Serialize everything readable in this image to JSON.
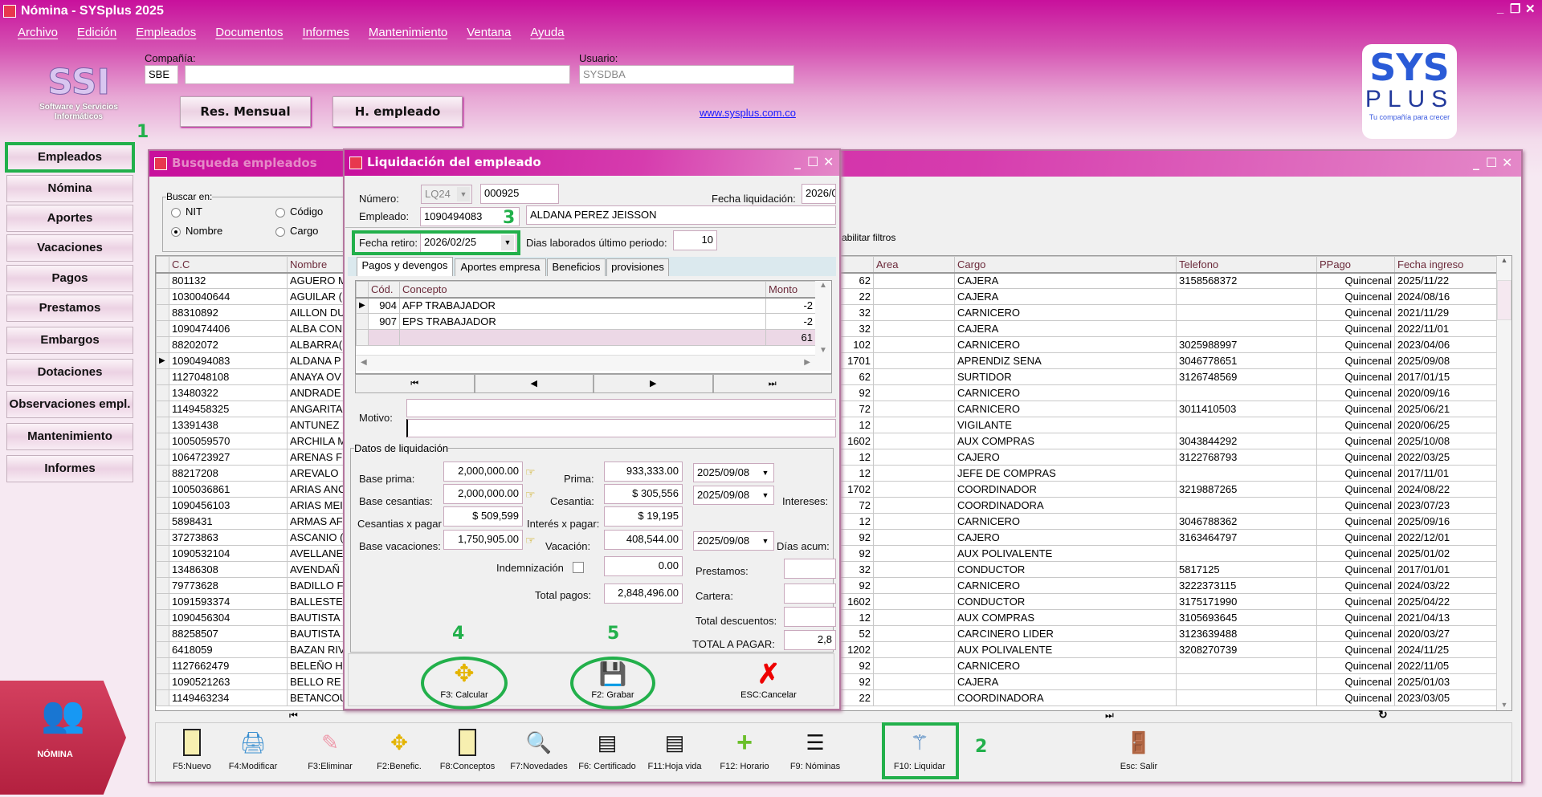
{
  "app": {
    "title": "Nómina - SYSplus 2025"
  },
  "menu": [
    "Archivo",
    "Edición",
    "Empleados",
    "Documentos",
    "Informes",
    "Mantenimiento",
    "Ventana",
    "Ayuda"
  ],
  "header": {
    "company_label": "Compañía:",
    "company_code": "SBE",
    "company_name": "",
    "user_label": "Usuario:",
    "user_value": "SYSDBA",
    "res_mensual": "Res. Mensual",
    "h_empleado": "H. empleado",
    "website": "www.sysplus.com.co",
    "ssi_logo_text": "SSI",
    "ssi_caption": "Software y Servicios Informáticos",
    "sysplus_logo": {
      "line1": "SYS",
      "line2": "PLUS",
      "tagline": "Tu compañía para crecer"
    }
  },
  "sidebar": {
    "items": [
      "Empleados",
      "Nómina",
      "Aportes",
      "Vacaciones",
      "Pagos",
      "Prestamos",
      "Embargos",
      "Dotaciones",
      "Observaciones empl.",
      "Mantenimiento",
      "Informes"
    ],
    "badge_label": "NÓMINA"
  },
  "annotations": {
    "n1": "1",
    "n2": "2",
    "n3": "3",
    "n4": "4",
    "n5": "5",
    "color": "#22b04b"
  },
  "search_window": {
    "title": "Busqueda empleados",
    "search_group": "Buscar en:",
    "radios": [
      {
        "label": "NIT",
        "checked": false
      },
      {
        "label": "Código",
        "checked": false
      },
      {
        "label": "Nombre",
        "checked": true
      },
      {
        "label": "Cargo",
        "checked": false
      }
    ],
    "filters_text": "abilitar filtros",
    "columns": [
      "C.C",
      "Nombre",
      "",
      "Area",
      "Cargo",
      "Telefono",
      "PPago",
      "Fecha ingreso"
    ],
    "selected_index": 5,
    "rows": [
      [
        "801132",
        "AGUERO M",
        "62",
        "",
        "CAJERA",
        "3158568372",
        "Quincenal",
        "2025/11/22"
      ],
      [
        "1030040644",
        "AGUILAR (",
        "22",
        "",
        "CAJERA",
        "",
        "Quincenal",
        "2024/08/16"
      ],
      [
        "88310892",
        "AILLON DU",
        "32",
        "",
        "CARNICERO",
        "",
        "Quincenal",
        "2021/11/29"
      ],
      [
        "1090474406",
        "ALBA CON",
        "32",
        "",
        "CAJERA",
        "",
        "Quincenal",
        "2022/11/01"
      ],
      [
        "88202072",
        "ALBARRA(",
        "102",
        "",
        "CARNICERO",
        "3025988997",
        "Quincenal",
        "2023/04/06"
      ],
      [
        "1090494083",
        "ALDANA P",
        "1701",
        "",
        "APRENDIZ SENA",
        "3046778651",
        "Quincenal",
        "2025/09/08"
      ],
      [
        "1127048108",
        "ANAYA OV",
        "62",
        "",
        "SURTIDOR",
        "3126748569",
        "Quincenal",
        "2017/01/15"
      ],
      [
        "13480322",
        "ANDRADE",
        "92",
        "",
        "CARNICERO",
        "",
        "Quincenal",
        "2020/09/16"
      ],
      [
        "1149458325",
        "ANGARITA",
        "72",
        "",
        "CARNICERO",
        "3011410503",
        "Quincenal",
        "2025/06/21"
      ],
      [
        "13391438",
        "ANTUNEZ",
        "12",
        "",
        "VIGILANTE",
        "",
        "Quincenal",
        "2020/06/25"
      ],
      [
        "1005059570",
        "ARCHILA M",
        "1602",
        "",
        "AUX COMPRAS",
        "3043844292",
        "Quincenal",
        "2025/10/08"
      ],
      [
        "1064723927",
        "ARENAS F",
        "12",
        "",
        "CAJERO",
        "3122768793",
        "Quincenal",
        "2022/03/25"
      ],
      [
        "88217208",
        "AREVALO",
        "12",
        "",
        "JEFE DE COMPRAS",
        "",
        "Quincenal",
        "2017/11/01"
      ],
      [
        "1005036861",
        "ARIAS ANC",
        "1702",
        "",
        "COORDINADOR",
        "3219887265",
        "Quincenal",
        "2024/08/22"
      ],
      [
        "1090456103",
        "ARIAS MEI",
        "72",
        "",
        "COORDINADORA",
        "",
        "Quincenal",
        "2023/07/23"
      ],
      [
        "5898431",
        "ARMAS AF",
        "12",
        "",
        "CARNICERO",
        "3046788362",
        "Quincenal",
        "2025/09/16"
      ],
      [
        "37273863",
        "ASCANIO (",
        "92",
        "",
        "CAJERO",
        "3163464797",
        "Quincenal",
        "2022/12/01"
      ],
      [
        "1090532104",
        "AVELLANE",
        "92",
        "",
        "AUX POLIVALENTE",
        "",
        "Quincenal",
        "2025/01/02"
      ],
      [
        "13486308",
        "AVENDAÑ",
        "32",
        "",
        "CONDUCTOR",
        "5817125",
        "Quincenal",
        "2017/01/01"
      ],
      [
        "79773628",
        "BADILLO F",
        "92",
        "",
        "CARNICERO",
        "3222373115",
        "Quincenal",
        "2024/03/22"
      ],
      [
        "1091593374",
        "BALLESTE",
        "1602",
        "",
        "CONDUCTOR",
        "3175171990",
        "Quincenal",
        "2025/04/22"
      ],
      [
        "1090456304",
        "BAUTISTA",
        "12",
        "",
        "AUX COMPRAS",
        "3105693645",
        "Quincenal",
        "2021/04/13"
      ],
      [
        "88258507",
        "BAUTISTA",
        "52",
        "",
        "CARCINERO LIDER",
        "3123639488",
        "Quincenal",
        "2020/03/27"
      ],
      [
        "6418059",
        "BAZAN RIV",
        "1202",
        "",
        "AUX POLIVALENTE",
        "3208270739",
        "Quincenal",
        "2024/11/25"
      ],
      [
        "1127662479",
        "BELEÑO H",
        "92",
        "",
        "CARNICERO",
        "",
        "Quincenal",
        "2022/11/05"
      ],
      [
        "1090521263",
        "BELLO RE",
        "92",
        "",
        "CAJERA",
        "",
        "Quincenal",
        "2025/01/03"
      ],
      [
        "1149463234",
        "BETANCOU",
        "22",
        "",
        "COORDINADORA",
        "",
        "Quincenal",
        "2023/03/05"
      ]
    ],
    "toolbar": [
      {
        "label": "F5:Nuevo",
        "icon": "new-icon"
      },
      {
        "label": "F4:Modificar",
        "icon": "modify-icon"
      },
      {
        "label": "F3:Eliminar",
        "icon": "eraser-icon"
      },
      {
        "label": "F2:Benefic.",
        "icon": "arrows-icon"
      },
      {
        "label": "F8:Conceptos",
        "icon": "note-icon"
      },
      {
        "label": "F7:Novedades",
        "icon": "magnifier-book-icon"
      },
      {
        "label": "F6: Certificado",
        "icon": "certificate-icon"
      },
      {
        "label": "F11:Hoja vida",
        "icon": "resume-icon"
      },
      {
        "label": "F12: Horario",
        "icon": "plus-icon"
      },
      {
        "label": "F9: Nóminas",
        "icon": "list-icon"
      },
      {
        "label": "F10: Liquidar",
        "icon": "magic-wand-icon"
      },
      {
        "label": "Esc: Salir",
        "icon": "exit-door-icon"
      }
    ]
  },
  "dialog": {
    "title": "Liquidación del empleado",
    "numero_label": "Número:",
    "numero_prefix": "LQ24",
    "numero_value": "000925",
    "fecha_liq_label": "Fecha liquidación:",
    "fecha_liq_value": "2026/0",
    "empleado_label": "Empleado:",
    "empleado_id": "1090494083",
    "empleado_name": "ALDANA PEREZ JEISSON",
    "fecha_retiro_label": "Fecha retiro:",
    "fecha_retiro_value": "2026/02/25",
    "dias_label": "Dias laborados último periodo:",
    "dias_value": "10",
    "tabs": [
      "Pagos y devengos",
      "Aportes empresa",
      "Beneficios",
      "provisiones"
    ],
    "active_tab": 0,
    "concept_columns": [
      "Cód.",
      "Concepto",
      "Monto"
    ],
    "concepts": [
      {
        "cod": "904",
        "concepto": "AFP TRABAJADOR",
        "monto": "-2"
      },
      {
        "cod": "907",
        "concepto": "EPS TRABAJADOR",
        "monto": "-2"
      }
    ],
    "concept_total": "61",
    "motivo_label": "Motivo:",
    "motivo_1": "",
    "motivo_2": "",
    "datos_label": "Datos de liquidación",
    "base_prima_label": "Base prima:",
    "base_prima": "2,000,000.00",
    "base_cesantias_label": "Base cesantias:",
    "base_cesantias": "2,000,000.00",
    "cesantias_pagar_label": "Cesantias x pagar",
    "cesantias_pagar": "$ 509,599",
    "base_vacaciones_label": "Base vacaciones:",
    "base_vacaciones": "1,750,905.00",
    "prima_label": "Prima:",
    "prima": "933,333.00",
    "prima_date": "2025/09/08",
    "cesantia_label": "Cesantia:",
    "cesantia": "$ 305,556",
    "cesantia_date": "2025/09/08",
    "interes_label": "Interés x pagar:",
    "interes": "$ 19,195",
    "vacacion_label": "Vacación:",
    "vacacion": "408,544.00",
    "vacacion_date": "2025/09/08",
    "intereses_label": "Intereses:",
    "dias_acum_label": "Días acum:",
    "indemnizacion_label": "Indemnización",
    "indemnizacion_checked": false,
    "indemnizacion": "0.00",
    "total_pagos_label": "Total pagos:",
    "total_pagos": "2,848,496.00",
    "prestamos_label": "Prestamos:",
    "prestamos": "",
    "cartera_label": "Cartera:",
    "cartera": "",
    "total_desc_label": "Total descuentos:",
    "total_desc": "",
    "total_pagar_label": "TOTAL A PAGAR:",
    "total_pagar": "2,8",
    "calcular": "F3: Calcular",
    "grabar": "F2: Grabar",
    "cancelar": "ESC:Cancelar"
  }
}
